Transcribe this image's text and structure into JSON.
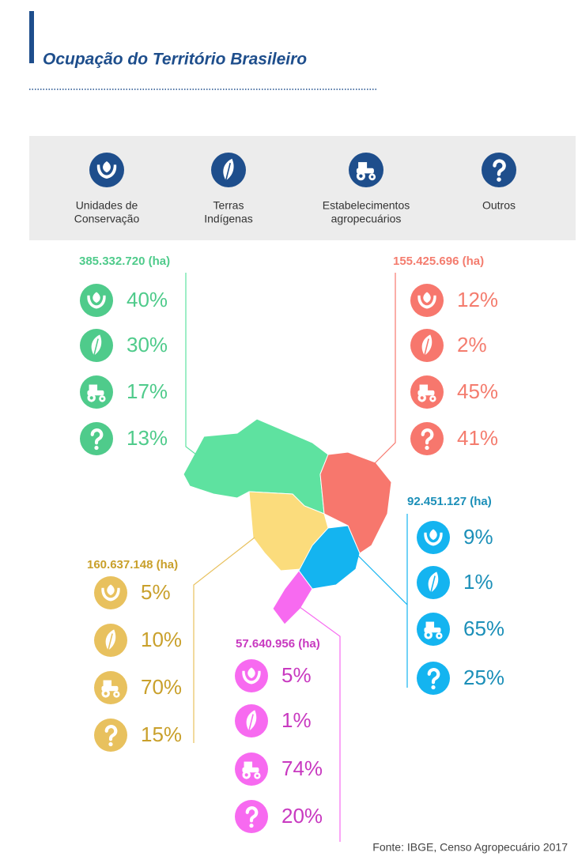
{
  "header": {
    "title": "Ocupação do Território Brasileiro"
  },
  "legend": [
    {
      "lines": [
        "Unidades de",
        "Conservação"
      ]
    },
    {
      "lines": [
        "Terras",
        "Indígenas"
      ]
    },
    {
      "lines": [
        "Estabelecimentos",
        "agropecuários"
      ]
    },
    {
      "lines": [
        "Outros"
      ]
    }
  ],
  "regions": [
    {
      "total": "385.332.720 (ha)",
      "shares": [
        "40%",
        "30%",
        "17%",
        "13%"
      ]
    },
    {
      "total": "155.425.696 (ha)",
      "shares": [
        "12%",
        "2%",
        "45%",
        "41%"
      ]
    },
    {
      "total": "92.451.127 (ha)",
      "shares": [
        "9%",
        "1%",
        "65%",
        "25%"
      ]
    },
    {
      "total": "160.637.148 (ha)",
      "shares": [
        "5%",
        "10%",
        "70%",
        "15%"
      ]
    },
    {
      "total": "57.640.956 (ha)",
      "shares": [
        "5%",
        "1%",
        "74%",
        "20%"
      ]
    }
  ],
  "source": "Fonte: IBGE, Censo Agropecuário 2017"
}
